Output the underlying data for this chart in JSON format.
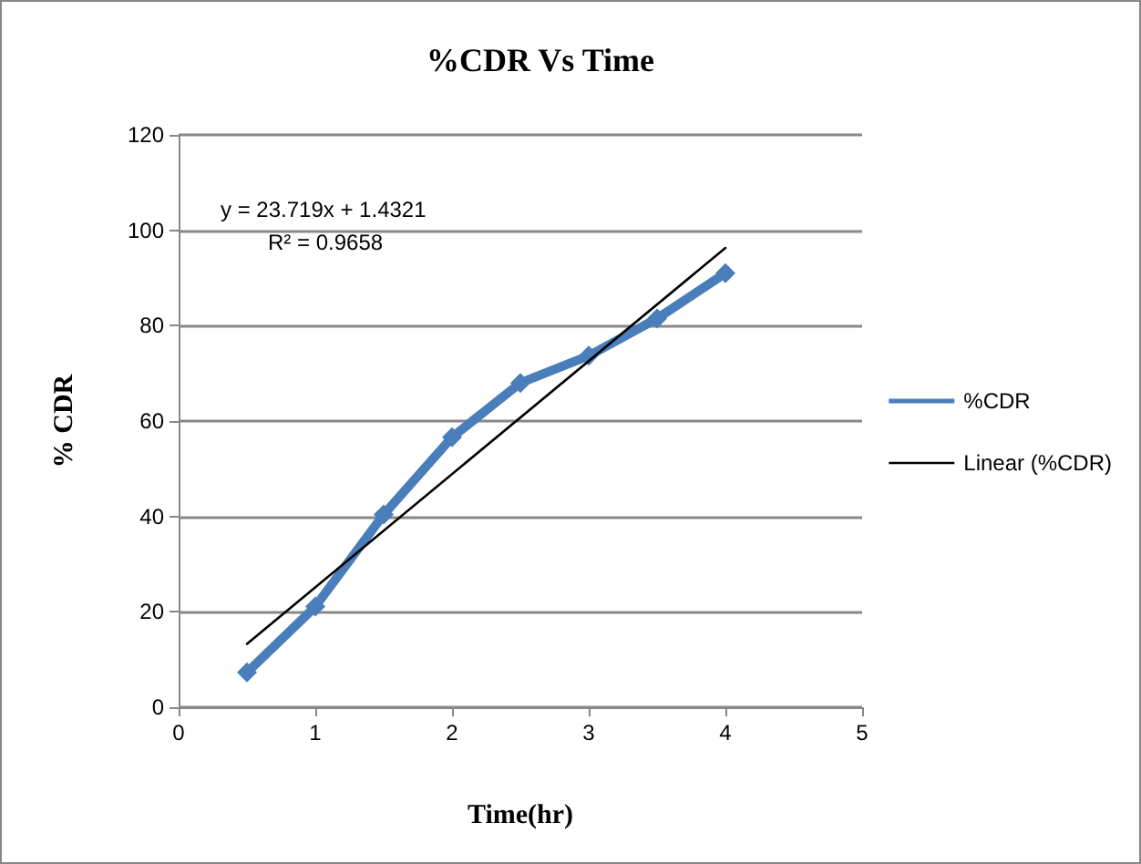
{
  "chart_data": {
    "type": "line",
    "title": "%CDR Vs Time",
    "xlabel": "Time(hr)",
    "ylabel": "% CDR",
    "annotations": [
      "y = 23.719x + 1.4321",
      "R² = 0.9658"
    ],
    "series": [
      {
        "name": "%CDR",
        "color": "#4a7ebb",
        "x": [
          0.5,
          1,
          1.5,
          2,
          2.5,
          3,
          3.5,
          4
        ],
        "values": [
          7.3,
          21.1,
          40.4,
          56.6,
          68.0,
          73.7,
          81.5,
          91.0
        ],
        "marker": "diamond",
        "line_style": "solid"
      },
      {
        "name": "Linear (%CDR)",
        "type": "line",
        "color": "#000000",
        "x": [
          0.5,
          4
        ],
        "values": [
          13.3,
          96.3
        ],
        "marker": "none",
        "line_style": "solid"
      }
    ],
    "xlim": [
      0,
      5
    ],
    "xticks": [
      0,
      1,
      2,
      3,
      4,
      5
    ],
    "ylim": [
      0,
      120
    ],
    "yticks": [
      0,
      20,
      40,
      60,
      80,
      100,
      120
    ],
    "grid": "y",
    "legend": "right"
  }
}
